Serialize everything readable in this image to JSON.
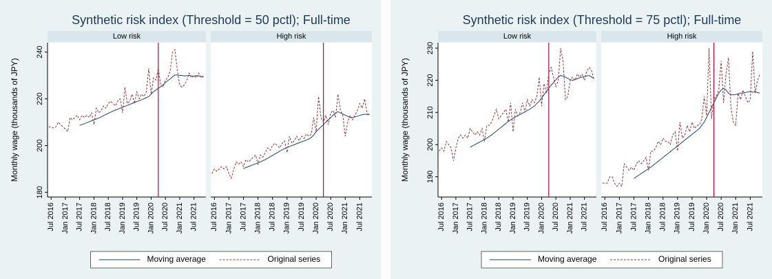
{
  "chart_data": [
    {
      "type": "line",
      "title": "Synthetic risk index (Threshold = 50 pctl); Full-time",
      "ylabel": "Monthly wage (thousands of JPY)",
      "panels": [
        "Low risk",
        "High risk"
      ],
      "ylim": [
        178,
        244
      ],
      "yticks": [
        180,
        200,
        220,
        240
      ],
      "xlim": [
        4.5,
        71
      ],
      "xticks": [
        {
          "value": 6,
          "label": "Jul 2016"
        },
        {
          "value": 12,
          "label": "Jan 2017"
        },
        {
          "value": 18,
          "label": "Jul 2017"
        },
        {
          "value": 24,
          "label": "Jan 2018"
        },
        {
          "value": 30,
          "label": "Jul 2018"
        },
        {
          "value": 36,
          "label": "Jan 2019"
        },
        {
          "value": 42,
          "label": "Jul 2019"
        },
        {
          "value": 48,
          "label": "Jan 2020"
        },
        {
          "value": 54,
          "label": "Jul 2020"
        },
        {
          "value": 60,
          "label": "Jan 2021"
        },
        {
          "value": 66,
          "label": "Jul 2021"
        }
      ],
      "vline": 51,
      "vline_color": "#c10534",
      "legend_position": "bottom",
      "x": [
        5,
        6,
        7,
        8,
        9,
        10,
        11,
        12,
        13,
        14,
        15,
        16,
        17,
        18,
        19,
        20,
        21,
        22,
        23,
        24,
        25,
        26,
        27,
        28,
        29,
        30,
        31,
        32,
        33,
        34,
        35,
        36,
        37,
        38,
        39,
        40,
        41,
        42,
        43,
        44,
        45,
        46,
        47,
        48,
        49,
        50,
        51,
        52,
        53,
        54,
        55,
        56,
        57,
        58,
        59,
        60,
        61,
        62,
        63,
        64,
        65,
        66,
        67,
        68,
        69,
        70
      ],
      "series": [
        {
          "name": "Moving average",
          "color": "#1a476f",
          "dashed": false,
          "values": [
            [
              null,
              null,
              null,
              null,
              null,
              null,
              null,
              null,
              null,
              null,
              null,
              null,
              null,
              208.7,
              209,
              209.4,
              209.8,
              210.2,
              210.6,
              211,
              211.4,
              211.8,
              212.3,
              212.8,
              213.3,
              213.8,
              214.3,
              214.8,
              215.2,
              215.6,
              216,
              216.4,
              216.8,
              217.2,
              217.6,
              218,
              218.4,
              218.8,
              219.2,
              219.6,
              220,
              220.5,
              221,
              222,
              223,
              223.8,
              224.5,
              225.2,
              226,
              227,
              227.8,
              228.5,
              229.5,
              230.2,
              230.2,
              230,
              230,
              229.8,
              229.9,
              230,
              229.8,
              229.7,
              229.9,
              229.8,
              229.5,
              229.3
            ],
            [
              null,
              null,
              null,
              null,
              null,
              null,
              null,
              null,
              null,
              null,
              null,
              null,
              null,
              190.2,
              190.6,
              191,
              191.4,
              191.8,
              192.2,
              192.6,
              193,
              193.5,
              194,
              194.6,
              195.2,
              195.8,
              196.4,
              197,
              197.6,
              198.2,
              198.7,
              199.2,
              199.6,
              200,
              200.4,
              200.8,
              201.2,
              201.6,
              202,
              202.4,
              202.8,
              203.5,
              204.5,
              206,
              207,
              208,
              209,
              210,
              211,
              212,
              213,
              214,
              214.5,
              214,
              213.5,
              213,
              212.5,
              212,
              212,
              212.3,
              212.6,
              212.9,
              213.2,
              213.4,
              213.3,
              213.2
            ]
          ]
        },
        {
          "name": "Original series",
          "color": "#90353b",
          "dashed": true,
          "values": [
            [
              208,
              208,
              207.5,
              208,
              210,
              209,
              208,
              207,
              206,
              212,
              211,
              212,
              213,
              211,
              213,
              212,
              213,
              212,
              214,
              209,
              216,
              214,
              215,
              217,
              216,
              218,
              219,
              218,
              217,
              219,
              220,
              214,
              225,
              218,
              219,
              222,
              218,
              223,
              220,
              222,
              221,
              223,
              233,
              222,
              229,
              228,
              233,
              226,
              225,
              228,
              229,
              232,
              240,
              241,
              232,
              226,
              225,
              226,
              228,
              231,
              229,
              230,
              229,
              231,
              229,
              230
            ],
            [
              188,
              190,
              189,
              190,
              191,
              190,
              191,
              188,
              186,
              190,
              193,
              192,
              193,
              191,
              194,
              193,
              194,
              195,
              196,
              192,
              196,
              195,
              197,
              199,
              198,
              200,
              201,
              200,
              199,
              201,
              202,
              197,
              204,
              201,
              202,
              204,
              202,
              204,
              203,
              205,
              204,
              205,
              212,
              206,
              221,
              212,
              210,
              213,
              209,
              214,
              215,
              212,
              222,
              215,
              213,
              204,
              210,
              213,
              211,
              213,
              215,
              218,
              216,
              220,
              214,
              213
            ]
          ]
        }
      ]
    },
    {
      "type": "line",
      "title": "Synthetic risk index (Threshold = 75 pctl); Full-time",
      "ylabel": "Monthly wage (thousands of JPY)",
      "panels": [
        "Low risk",
        "High risk"
      ],
      "ylim": [
        183.7,
        231.7
      ],
      "yticks": [
        190,
        200,
        210,
        220,
        230
      ],
      "xlim": [
        4.5,
        71
      ],
      "xticks": [
        {
          "value": 6,
          "label": "Jul 2016"
        },
        {
          "value": 12,
          "label": "Jan 2017"
        },
        {
          "value": 18,
          "label": "Jul 2017"
        },
        {
          "value": 24,
          "label": "Jan 2018"
        },
        {
          "value": 30,
          "label": "Jul 2018"
        },
        {
          "value": 36,
          "label": "Jan 2019"
        },
        {
          "value": 42,
          "label": "Jul 2019"
        },
        {
          "value": 48,
          "label": "Jan 2020"
        },
        {
          "value": 54,
          "label": "Jul 2020"
        },
        {
          "value": 60,
          "label": "Jan 2021"
        },
        {
          "value": 66,
          "label": "Jul 2021"
        }
      ],
      "vline": 51,
      "vline_color": "#c10534",
      "legend_position": "bottom",
      "x": [
        5,
        6,
        7,
        8,
        9,
        10,
        11,
        12,
        13,
        14,
        15,
        16,
        17,
        18,
        19,
        20,
        21,
        22,
        23,
        24,
        25,
        26,
        27,
        28,
        29,
        30,
        31,
        32,
        33,
        34,
        35,
        36,
        37,
        38,
        39,
        40,
        41,
        42,
        43,
        44,
        45,
        46,
        47,
        48,
        49,
        50,
        51,
        52,
        53,
        54,
        55,
        56,
        57,
        58,
        59,
        60,
        61,
        62,
        63,
        64,
        65,
        66,
        67,
        68,
        69,
        70
      ],
      "series": [
        {
          "name": "Moving average",
          "color": "#1a476f",
          "dashed": false,
          "values": [
            [
              null,
              null,
              null,
              null,
              null,
              null,
              null,
              null,
              null,
              null,
              null,
              null,
              null,
              199.2,
              199.6,
              200,
              200.4,
              200.8,
              201.2,
              201.6,
              202,
              202.5,
              203,
              203.6,
              204.2,
              204.8,
              205.4,
              206,
              206.6,
              207.2,
              207.7,
              208.2,
              208.6,
              209,
              209.4,
              209.8,
              210.2,
              210.6,
              211,
              211.5,
              212,
              212.8,
              213.5,
              214.5,
              215.5,
              216.5,
              217.5,
              218.5,
              219.3,
              220.2,
              221,
              221.5,
              221.3,
              221,
              220.6,
              220.2,
              220,
              220.2,
              220.5,
              220.8,
              221,
              221.2,
              221.4,
              221.5,
              221,
              220.5
            ],
            [
              null,
              null,
              null,
              null,
              null,
              null,
              null,
              null,
              null,
              null,
              null,
              null,
              null,
              189.5,
              190,
              190.5,
              191,
              191.5,
              192,
              192.5,
              193,
              193.6,
              194.2,
              194.8,
              195.4,
              196,
              196.6,
              197.2,
              197.8,
              198.4,
              199,
              199.6,
              200.2,
              200.8,
              201.4,
              202,
              202.6,
              203.2,
              203.8,
              204.4,
              205,
              206,
              207,
              208.5,
              210,
              211.5,
              213,
              214.5,
              216,
              217,
              217.5,
              217,
              216,
              215.5,
              215.5,
              215.6,
              215.8,
              216,
              216,
              216.2,
              216.4,
              216.5,
              216.3,
              216.5,
              216.2,
              216
            ]
          ]
        },
        {
          "name": "Original series",
          "color": "#90353b",
          "dashed": true,
          "values": [
            [
              198,
              199,
              198,
              201,
              200,
              199,
              195,
              199,
              202,
              203,
              202,
              203,
              202,
              205,
              204,
              203,
              204,
              203,
              205,
              201,
              206,
              206,
              207,
              209,
              211,
              208,
              209,
              210,
              211,
              207,
              213,
              204,
              211,
              209,
              210,
              213,
              210,
              214,
              212,
              214,
              213,
              215,
              221,
              212,
              219,
              216,
              222,
              224,
              221,
              218,
              220,
              230,
              226,
              214,
              215,
              220,
              221,
              220,
              222,
              221,
              222,
              220,
              223,
              224,
              223,
              220
            ],
            [
              188,
              188,
              188,
              190,
              190,
              188,
              187,
              188,
              187,
              194,
              193,
              192,
              193,
              192,
              194,
              195,
              194,
              195,
              196,
              192,
              198,
              198,
              199,
              201,
              200,
              202,
              201,
              201,
              200,
              203,
              204,
              198,
              207,
              202,
              203,
              206,
              204,
              207,
              205,
              206,
              206,
              208,
              215,
              209,
              230,
              208,
              214,
              215,
              217,
              226,
              213,
              222,
              227,
              212,
              207,
              206,
              216,
              214,
              217,
              215,
              213,
              214,
              229,
              216,
              220,
              222
            ]
          ]
        }
      ]
    }
  ]
}
